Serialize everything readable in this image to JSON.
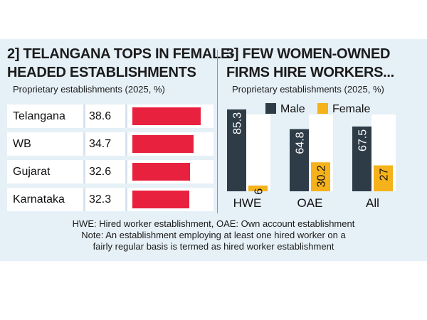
{
  "panel_left": {
    "title_line1": "2] TELANGANA TOPS IN FEMALE-",
    "title_line2": "HEADED ESTABLISHMENTS",
    "subtitle": "Proprietary establishments (2025, %)"
  },
  "panel_right": {
    "title_line1": "3] FEW WOMEN-OWNED",
    "title_line2": "FIRMS HIRE WORKERS...",
    "subtitle": "Proprietary establishments (2025, %)"
  },
  "footnote": {
    "line1": "HWE: Hired worker establishment, OAE: Own account establishment",
    "line2": "Note: An establishment employing at least one hired worker on a",
    "line3": "fairly regular basis is termed as hired worker establishment"
  },
  "colors": {
    "red": "#e8213f",
    "male": "#2e3c48",
    "female": "#f5b21b",
    "background": "#e6f0f7"
  },
  "chart_data": [
    {
      "type": "bar",
      "orientation": "horizontal",
      "title": "2] TELANGANA TOPS IN FEMALE-HEADED ESTABLISHMENTS",
      "subtitle": "Proprietary establishments (2025, %)",
      "categories": [
        "Telangana",
        "WB",
        "Gujarat",
        "Karnataka"
      ],
      "values": [
        38.6,
        34.7,
        32.6,
        32.3
      ],
      "value_labels": [
        "38.6",
        "34.7",
        "32.6",
        "32.3"
      ],
      "xlim": [
        0,
        45
      ],
      "grid": false
    },
    {
      "type": "bar",
      "orientation": "vertical",
      "title": "3] FEW WOMEN-OWNED FIRMS HIRE WORKERS...",
      "subtitle": "Proprietary establishments (2025, %)",
      "categories": [
        "HWE",
        "OAE",
        "All"
      ],
      "series": [
        {
          "name": "Male",
          "values": [
            85.3,
            64.8,
            67.5
          ],
          "labels": [
            "85.3",
            "64.8",
            "67.5"
          ]
        },
        {
          "name": "Female",
          "values": [
            6,
            30.2,
            27
          ],
          "labels": [
            "6",
            "30.2",
            "27"
          ]
        }
      ],
      "ylim": [
        0,
        100
      ],
      "legend": "top",
      "grid": false
    }
  ]
}
